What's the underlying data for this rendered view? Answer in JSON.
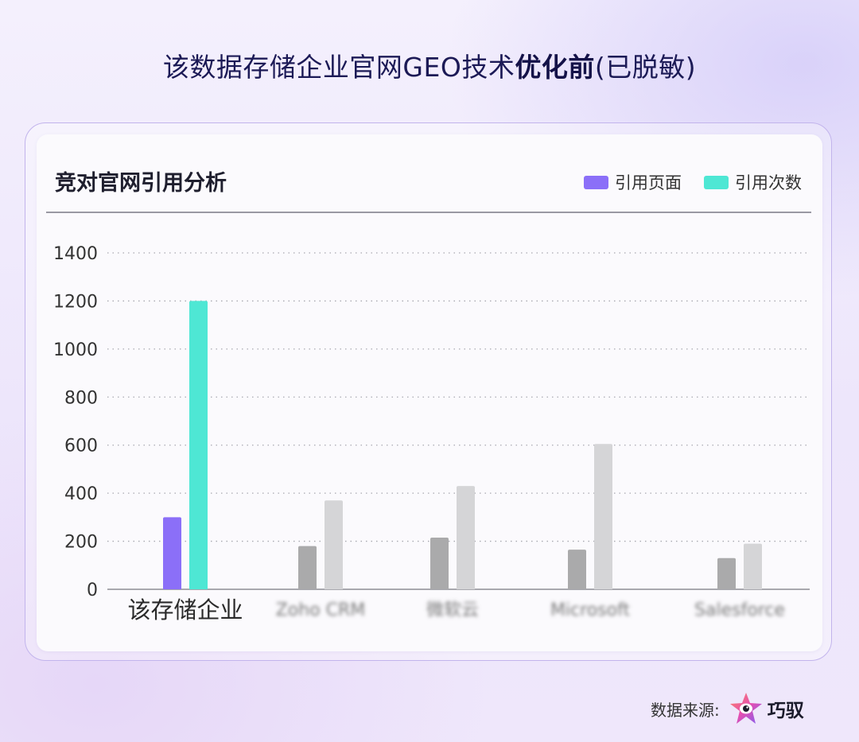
{
  "title": {
    "prefix": "该数据存储企业官网GEO技术",
    "bold": "优化前",
    "suffix": "(已脱敏)"
  },
  "card_title": "竞对官网引用分析",
  "colors": {
    "pages": "#8b6ff8",
    "citations": "#4ee7d4",
    "competitor_pages": "#aaaaab",
    "competitor_citations": "#d5d5d7"
  },
  "footer": {
    "label": "数据来源:",
    "brand": "巧驭"
  },
  "chart_data": {
    "type": "bar",
    "categories": [
      "该存储企业",
      "Zoho CRM",
      "微软云",
      "Microsoft",
      "Salesforce"
    ],
    "category_blurred": [
      false,
      true,
      true,
      true,
      true
    ],
    "series": [
      {
        "name": "引用页面",
        "values": [
          300,
          180,
          215,
          165,
          130
        ]
      },
      {
        "name": "引用次数",
        "values": [
          1200,
          370,
          430,
          605,
          190
        ]
      }
    ],
    "y_ticks": [
      0,
      200,
      400,
      600,
      800,
      1000,
      1200,
      1400
    ],
    "ylim": [
      0,
      1400
    ],
    "grid": true,
    "grid_style": "dotted",
    "legend_position": "top-right"
  }
}
